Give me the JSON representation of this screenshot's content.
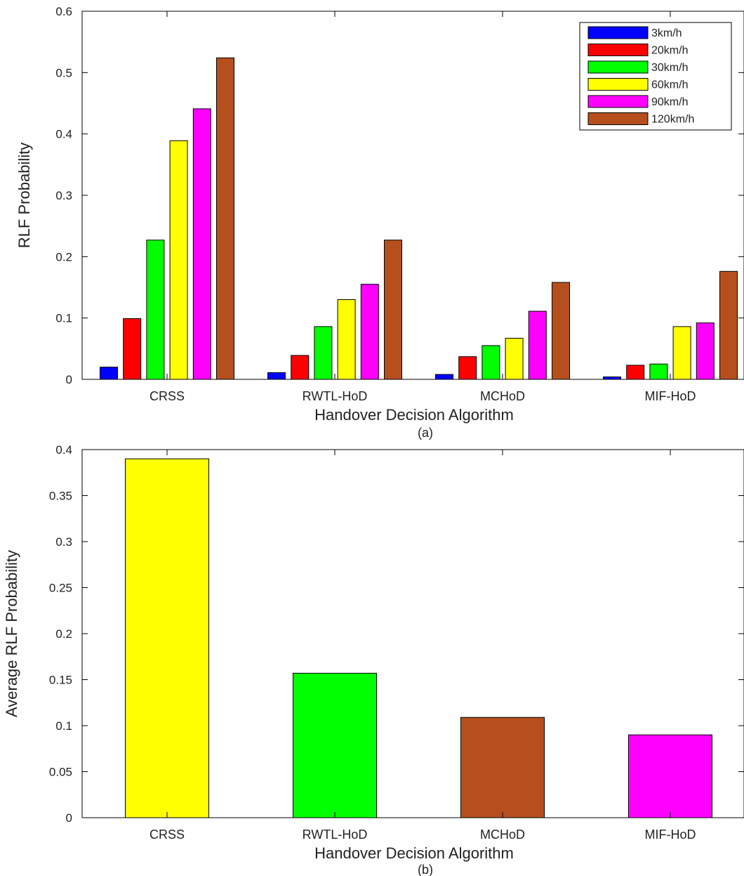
{
  "chart_data": [
    {
      "type": "bar",
      "panel_label": "(a)",
      "xlabel": "Handover Decision Algorithm",
      "ylabel": "RLF Probability",
      "categories": [
        "CRSS",
        "RWTL-HoD",
        "MCHoD",
        "MIF-HoD"
      ],
      "ylim": [
        0,
        0.6
      ],
      "yticks": [
        "0",
        "0.1",
        "0.2",
        "0.3",
        "0.4",
        "0.5",
        "0.6"
      ],
      "legend_position": "top-right",
      "grid": false,
      "series": [
        {
          "name": "3km/h",
          "color": "#0000ff",
          "values": [
            0.02,
            0.011,
            0.008,
            0.004
          ]
        },
        {
          "name": "20km/h",
          "color": "#ff0000",
          "values": [
            0.099,
            0.039,
            0.037,
            0.023
          ]
        },
        {
          "name": "30km/h",
          "color": "#00ff00",
          "values": [
            0.227,
            0.086,
            0.055,
            0.025
          ]
        },
        {
          "name": "60km/h",
          "color": "#ffff00",
          "values": [
            0.389,
            0.13,
            0.067,
            0.086
          ]
        },
        {
          "name": "90km/h",
          "color": "#ff00ff",
          "values": [
            0.441,
            0.155,
            0.111,
            0.092
          ]
        },
        {
          "name": "120km/h",
          "color": "#b5501e",
          "values": [
            0.524,
            0.227,
            0.158,
            0.176
          ]
        }
      ]
    },
    {
      "type": "bar",
      "panel_label": "(b)",
      "xlabel": "Handover Decision Algorithm",
      "ylabel": "Average RLF Probability",
      "categories": [
        "CRSS",
        "RWTL-HoD",
        "MCHoD",
        "MIF-HoD"
      ],
      "ylim": [
        0,
        0.4
      ],
      "yticks": [
        "0",
        "0.05",
        "0.1",
        "0.15",
        "0.2",
        "0.25",
        "0.3",
        "0.35",
        "0.4"
      ],
      "grid": false,
      "values": [
        0.39,
        0.157,
        0.109,
        0.09
      ],
      "colors": [
        "#ffff00",
        "#00ff00",
        "#b5501e",
        "#ff00ff"
      ]
    }
  ]
}
